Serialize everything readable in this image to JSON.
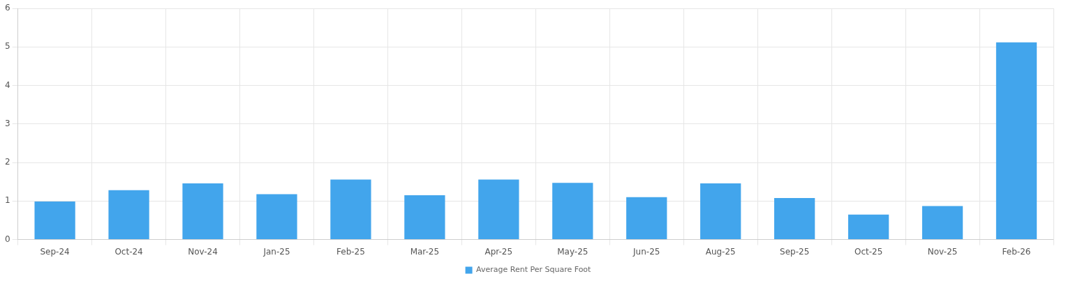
{
  "chart_data": {
    "type": "bar",
    "categories": [
      "Sep-24",
      "Oct-24",
      "Nov-24",
      "Jan-25",
      "Feb-25",
      "Mar-25",
      "Apr-25",
      "May-25",
      "Jun-25",
      "Aug-25",
      "Sep-25",
      "Oct-25",
      "Nov-25",
      "Feb-26"
    ],
    "series": [
      {
        "name": "Average Rent Per Square Foot",
        "color": "#42a5ec",
        "values": [
          0.99,
          1.28,
          1.46,
          1.18,
          1.56,
          1.15,
          1.56,
          1.47,
          1.1,
          1.46,
          1.08,
          0.65,
          0.87,
          5.12
        ]
      }
    ],
    "ylim": [
      0,
      6
    ],
    "yticks": [
      0,
      1,
      2,
      3,
      4,
      5,
      6
    ],
    "grid": true,
    "legend": "bottom"
  }
}
